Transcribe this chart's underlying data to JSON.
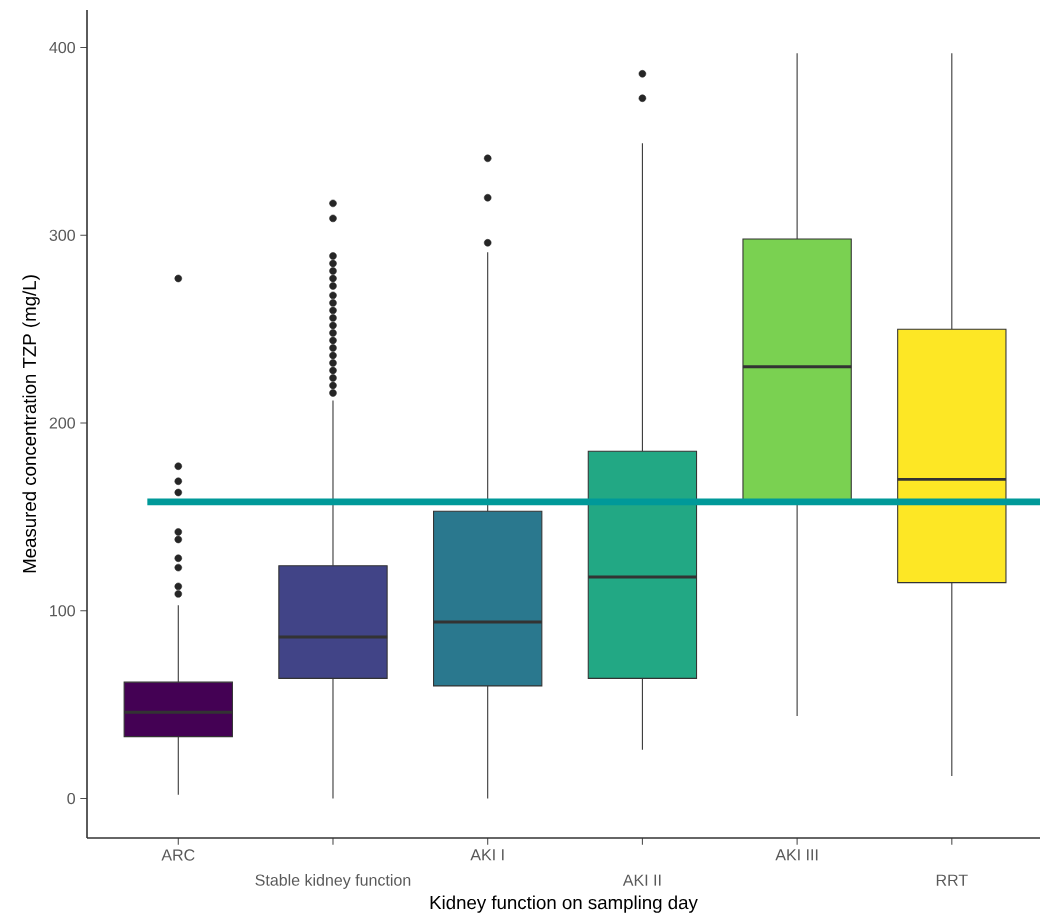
{
  "chart_data": {
    "type": "box",
    "xlabel": "Kidney function on sampling day",
    "ylabel": "Measured concentration TZP (mg/L)",
    "categories": [
      "ARC",
      "Stable kidney function",
      "AKI I",
      "AKI II",
      "AKI III",
      "RRT"
    ],
    "colors": [
      "#440154",
      "#414487",
      "#2a788e",
      "#22a884",
      "#7ad151",
      "#fde725"
    ],
    "boxes": [
      {
        "low": 2,
        "q1": 33,
        "median": 46,
        "q3": 62,
        "high": 103,
        "outliers": [
          109,
          113,
          123,
          128,
          138,
          142,
          163,
          169,
          177,
          277
        ]
      },
      {
        "low": 0,
        "q1": 64,
        "median": 86,
        "q3": 124,
        "high": 212,
        "outliers": [
          216,
          220,
          224,
          228,
          232,
          236,
          240,
          244,
          248,
          252,
          256,
          260,
          264,
          268,
          273,
          277,
          281,
          285,
          289,
          309,
          317
        ]
      },
      {
        "low": 0,
        "q1": 60,
        "median": 94,
        "q3": 153,
        "high": 291,
        "outliers": [
          296,
          320,
          341
        ]
      },
      {
        "low": 26,
        "q1": 64,
        "median": 118,
        "q3": 185,
        "high": 349,
        "outliers": [
          373,
          386
        ]
      },
      {
        "low": 44,
        "q1": 159,
        "median": 230,
        "q3": 298,
        "high": 397
      },
      {
        "low": 12,
        "q1": 115,
        "median": 170,
        "q3": 250,
        "high": 397
      }
    ],
    "ylim": [
      -21,
      420
    ],
    "yticks": [
      0,
      100,
      200,
      300,
      400
    ],
    "ref_lines": [
      {
        "axis": "y",
        "value": 158,
        "color": "#009999"
      }
    ],
    "grid": false
  }
}
